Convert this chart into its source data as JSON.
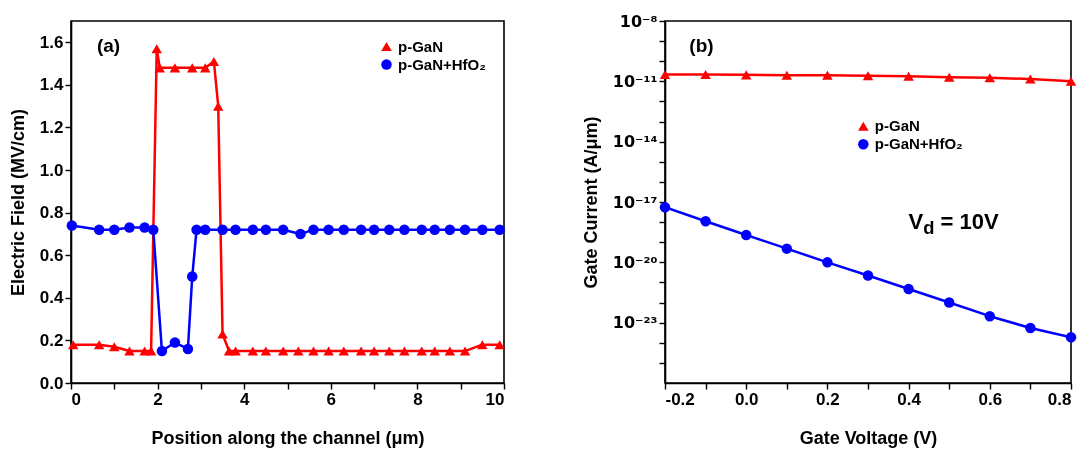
{
  "chart_data": [
    {
      "type": "line",
      "xlabel": "Position along the channel (μm)",
      "ylabel": "Electric Field (MV/cm)",
      "xlim": [
        0,
        10
      ],
      "xticks": [
        0,
        {
          "value": 1,
          "label": null
        },
        2,
        {
          "value": 3,
          "label": null
        },
        4,
        {
          "value": 5,
          "label": null
        },
        6,
        {
          "value": 7,
          "label": null
        },
        8,
        {
          "value": 9,
          "label": null
        },
        10
      ],
      "ylim": [
        0,
        1.7
      ],
      "yticks": [
        {
          "value": 0,
          "label": "0.0"
        },
        0.2,
        0.4,
        0.6,
        0.8,
        {
          "value": 1,
          "label": "1.0"
        },
        1.2,
        1.4,
        1.6
      ],
      "grid": false,
      "legend": "top right",
      "annotations": [
        "(a)"
      ],
      "series": [
        {
          "name": "p-GaN",
          "color": "#ff0000",
          "marker": "triangle",
          "x": [
            0.05,
            0.65,
            1.0,
            1.35,
            1.7,
            1.85,
            1.98,
            2.05,
            2.4,
            2.8,
            3.1,
            3.3,
            3.4,
            3.5,
            3.65,
            3.8,
            4.2,
            4.5,
            4.9,
            5.25,
            5.6,
            5.95,
            6.3,
            6.7,
            7.0,
            7.35,
            7.7,
            8.1,
            8.4,
            8.75,
            9.1,
            9.5,
            9.9
          ],
          "values": [
            0.18,
            0.18,
            0.17,
            0.15,
            0.15,
            0.15,
            1.57,
            1.48,
            1.48,
            1.48,
            1.48,
            1.51,
            1.3,
            0.23,
            0.15,
            0.15,
            0.15,
            0.15,
            0.15,
            0.15,
            0.15,
            0.15,
            0.15,
            0.15,
            0.15,
            0.15,
            0.15,
            0.15,
            0.15,
            0.15,
            0.15,
            0.18,
            0.18
          ]
        },
        {
          "name": "p-GaN+HfO₂",
          "color": "#0000ff",
          "marker": "circle",
          "x": [
            0.02,
            0.65,
            1.0,
            1.35,
            1.7,
            1.9,
            2.1,
            2.4,
            2.7,
            2.8,
            2.9,
            3.1,
            3.5,
            3.8,
            4.2,
            4.5,
            4.9,
            5.3,
            5.6,
            5.95,
            6.3,
            6.7,
            7.0,
            7.35,
            7.7,
            8.1,
            8.4,
            8.75,
            9.1,
            9.5,
            9.9
          ],
          "values": [
            0.74,
            0.72,
            0.72,
            0.73,
            0.73,
            0.72,
            0.15,
            0.19,
            0.16,
            0.5,
            0.72,
            0.72,
            0.72,
            0.72,
            0.72,
            0.72,
            0.72,
            0.7,
            0.72,
            0.72,
            0.72,
            0.72,
            0.72,
            0.72,
            0.72,
            0.72,
            0.72,
            0.72,
            0.72,
            0.72,
            0.72
          ]
        }
      ]
    },
    {
      "type": "line",
      "xlabel": "Gate Voltage (V)",
      "ylabel": "Gate Current (A/μm)",
      "log": "y",
      "xlim": [
        -0.2,
        0.8
      ],
      "xticks": [
        -0.2,
        {
          "value": -0.1,
          "label": null
        },
        {
          "value": 0,
          "label": "0.0"
        },
        {
          "value": 0.1,
          "label": null
        },
        0.2,
        {
          "value": 0.3,
          "label": null
        },
        0.4,
        {
          "value": 0.5,
          "label": null
        },
        0.6,
        {
          "value": 0.7,
          "label": null
        },
        0.8
      ],
      "ylim": [
        1e-26,
        1e-08
      ],
      "yticks": [
        {
          "value": 1e-08,
          "label": "10⁻⁸"
        },
        {
          "value": 1e-09,
          "label": null
        },
        {
          "value": 1e-10,
          "label": null
        },
        {
          "value": 1e-11,
          "label": "10⁻¹¹"
        },
        {
          "value": 1e-12,
          "label": null
        },
        {
          "value": 1e-13,
          "label": null
        },
        {
          "value": 1e-14,
          "label": "10⁻¹⁴"
        },
        {
          "value": 1e-15,
          "label": null
        },
        {
          "value": 1e-16,
          "label": null
        },
        {
          "value": 1e-17,
          "label": "10⁻¹⁷"
        },
        {
          "value": 1e-18,
          "label": null
        },
        {
          "value": 1e-19,
          "label": null
        },
        {
          "value": 1e-20,
          "label": "10⁻²⁰"
        },
        {
          "value": 1e-21,
          "label": null
        },
        {
          "value": 1e-22,
          "label": null
        },
        {
          "value": 1e-23,
          "label": "10⁻²³"
        },
        {
          "value": 1e-24,
          "label": null
        },
        {
          "value": 1e-25,
          "label": null
        }
      ],
      "grid": false,
      "legend": "right",
      "annotations": [
        "(b)",
        "V$_{d}$ = 10V"
      ],
      "x": [
        -0.2,
        -0.1,
        0,
        0.1,
        0.2,
        0.3,
        0.4,
        0.5,
        0.6,
        0.7,
        0.8
      ],
      "series": [
        {
          "name": "p-GaN",
          "color": "#ff0000",
          "marker": "triangle",
          "values": [
            2.2e-11,
            2.2e-11,
            2.1e-11,
            2e-11,
            2e-11,
            1.9e-11,
            1.8e-11,
            1.6e-11,
            1.5e-11,
            1.3e-11,
            1e-11
          ]
        },
        {
          "name": "p-GaN+HfO₂",
          "color": "#0000ff",
          "marker": "circle",
          "values": [
            5.5e-18,
            1.1e-18,
            2.3e-19,
            4.8e-20,
            1e-20,
            2.2e-21,
            4.7e-22,
            1e-22,
            2.1e-23,
            5.4e-24,
            1.9e-24
          ]
        }
      ]
    }
  ]
}
